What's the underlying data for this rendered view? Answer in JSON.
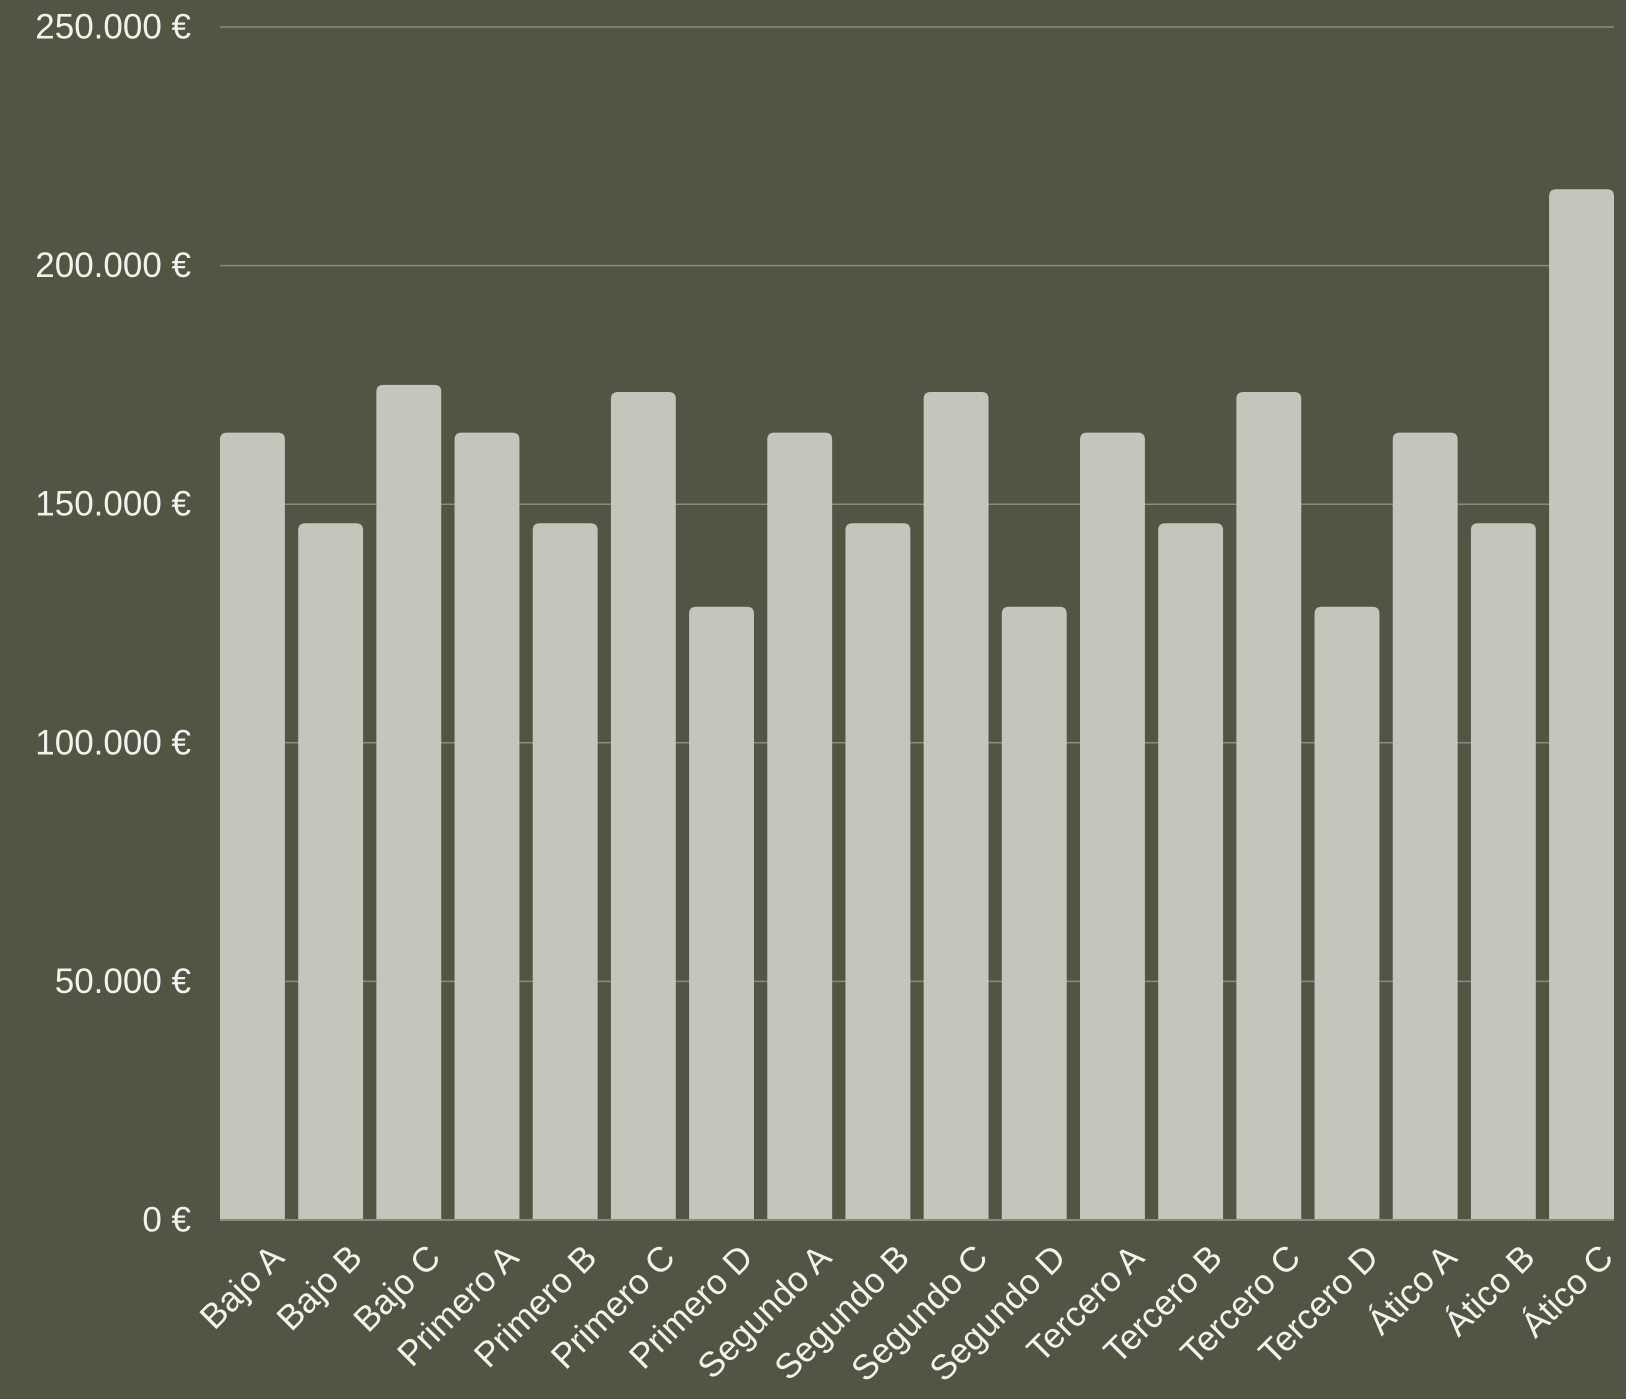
{
  "colors": {
    "background": "#525444",
    "bar": "#c6c5bb",
    "grid": "#8a8c7a",
    "text": "#f2f2ec"
  },
  "chart_data": {
    "type": "bar",
    "title": "",
    "xlabel": "",
    "ylabel": "",
    "ylim": [
      0,
      250000
    ],
    "yticks": [
      0,
      50000,
      100000,
      150000,
      200000,
      250000
    ],
    "ytick_labels": [
      "0 €",
      "50.000 €",
      "100.000 €",
      "150.000 €",
      "200.000 €",
      "250.000 €"
    ],
    "grid": true,
    "legend": "none",
    "categories": [
      "Bajo A",
      "Bajo B",
      "Bajo C",
      "Primero A",
      "Primero B",
      "Primero C",
      "Primero D",
      "Segundo A",
      "Segundo B",
      "Segundo C",
      "Segundo D",
      "Tercero A",
      "Tercero B",
      "Tercero C",
      "Tercero D",
      "Ático A",
      "Ático B",
      "Ático C"
    ],
    "values": [
      165000,
      146000,
      175000,
      165000,
      146000,
      173500,
      128500,
      165000,
      146000,
      173500,
      128500,
      165000,
      146000,
      173500,
      128500,
      165000,
      146000,
      216000
    ]
  }
}
